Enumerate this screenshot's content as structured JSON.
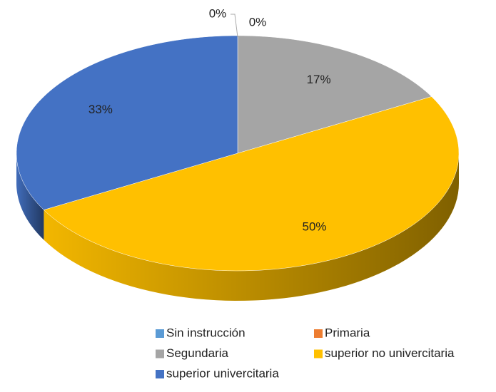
{
  "chart_data": {
    "type": "pie",
    "categories": [
      "Sin instrucción",
      "Primaria",
      "Segundaria",
      "superior no univercitaria",
      "superior univercitaria"
    ],
    "values": [
      0,
      0,
      17,
      50,
      33
    ],
    "value_labels": [
      "0%",
      "0%",
      "17%",
      "50%",
      "33%"
    ],
    "colors": [
      "#5b9bd5",
      "#ed7d31",
      "#a5a5a5",
      "#ffc000",
      "#4472c4"
    ],
    "legend": "bottom"
  }
}
